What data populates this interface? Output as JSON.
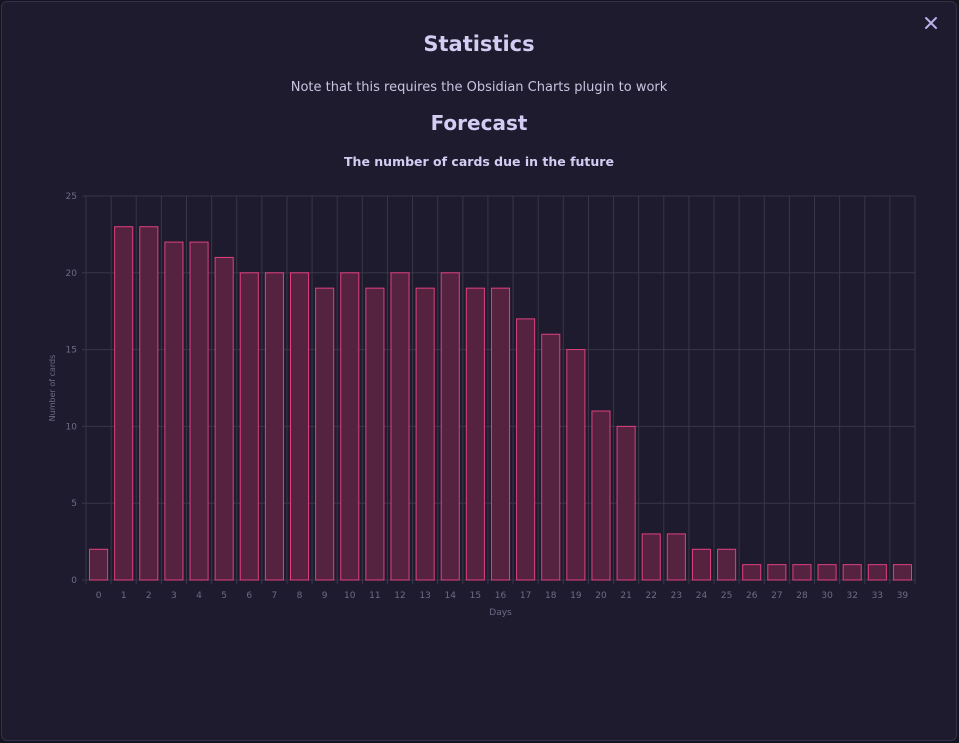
{
  "modal": {
    "title": "Statistics",
    "note": "Note that this requires the Obsidian Charts plugin to work",
    "section_heading": "Forecast",
    "close_icon": "close-icon"
  },
  "colors": {
    "background": "#1f1b2e",
    "bar_fill": "#55223f",
    "bar_stroke": "#e0407e",
    "grid": "#3a3648",
    "text": "#d2cdf2",
    "axis_text": "#6f6a85"
  },
  "chart_data": {
    "type": "bar",
    "title": "The number of cards due in the future",
    "xlabel": "Days",
    "ylabel": "Number of cards",
    "ylim": [
      0,
      25
    ],
    "yticks": [
      0,
      5,
      10,
      15,
      20,
      25
    ],
    "grid": true,
    "categories": [
      "0",
      "1",
      "2",
      "3",
      "4",
      "5",
      "6",
      "7",
      "8",
      "9",
      "10",
      "11",
      "12",
      "13",
      "14",
      "15",
      "16",
      "17",
      "18",
      "19",
      "20",
      "21",
      "22",
      "23",
      "24",
      "25",
      "26",
      "27",
      "28",
      "30",
      "32",
      "33",
      "39"
    ],
    "values": [
      2,
      23,
      23,
      22,
      22,
      21,
      20,
      20,
      20,
      19,
      20,
      19,
      20,
      19,
      20,
      19,
      19,
      17,
      16,
      15,
      11,
      10,
      3,
      3,
      2,
      2,
      1,
      1,
      1,
      1,
      1,
      1,
      1
    ]
  }
}
